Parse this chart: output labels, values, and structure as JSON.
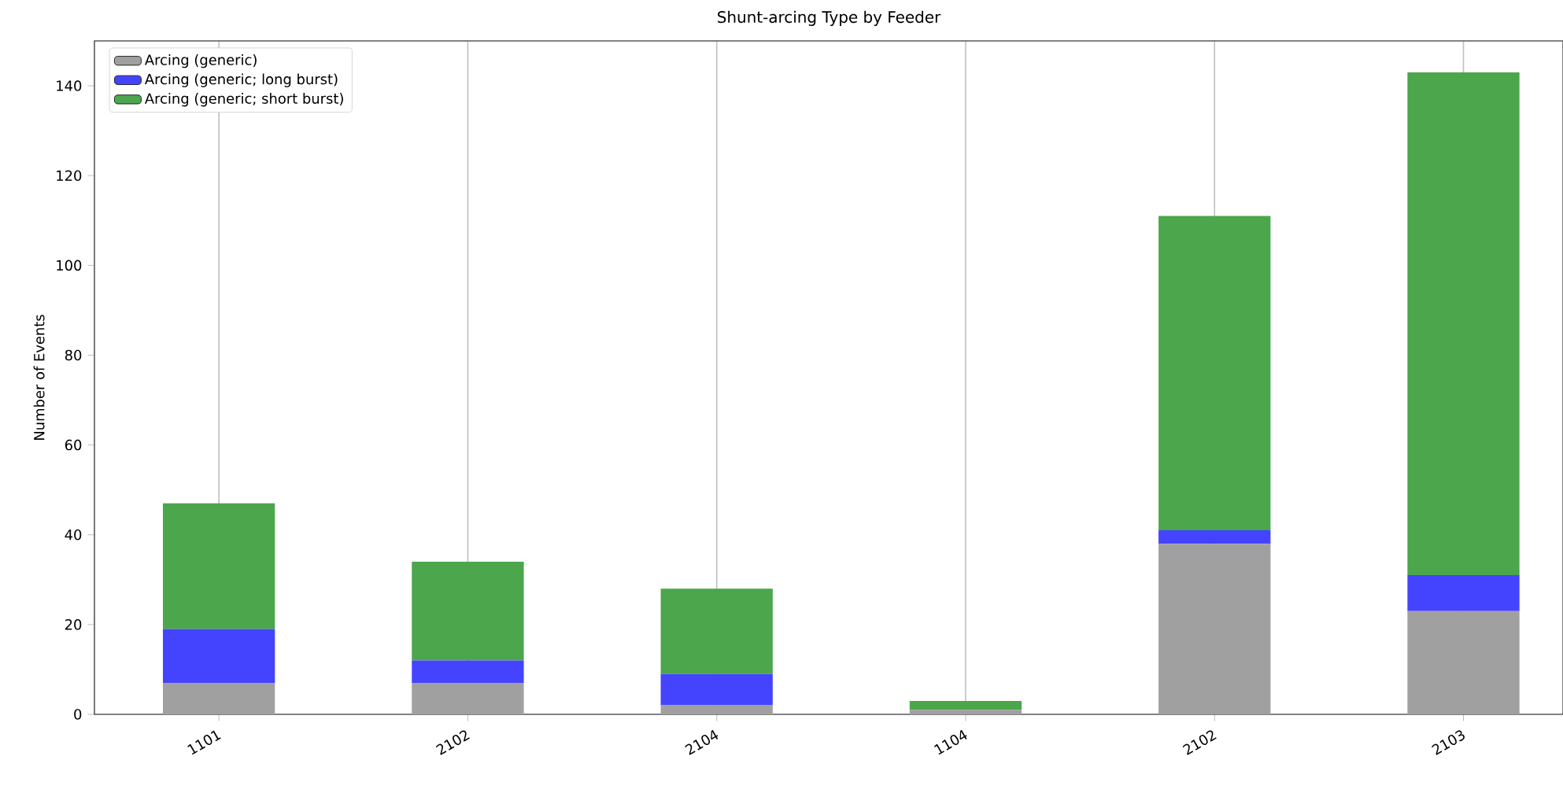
{
  "chart_data": {
    "type": "bar",
    "title": "Shunt-arcing Type by Feeder",
    "ylabel": "Number of Events",
    "categories": [
      "1101",
      "2102",
      "2104",
      "1104",
      "2102",
      "2103"
    ],
    "stacked": true,
    "series": [
      {
        "name": "Arcing (generic)",
        "color": "#a0a0a0",
        "values": [
          7,
          7,
          2,
          1,
          38,
          23
        ]
      },
      {
        "name": "Arcing (generic; long burst)",
        "color": "#4444ff",
        "values": [
          12,
          5,
          7,
          0,
          3,
          8
        ]
      },
      {
        "name": "Arcing (generic; short burst)",
        "color": "#4ca64c",
        "values": [
          28,
          22,
          19,
          2,
          70,
          112
        ]
      }
    ],
    "ylim": [
      0,
      150
    ],
    "yticks": [
      0,
      20,
      40,
      60,
      80,
      100,
      120,
      140
    ],
    "grid": "x",
    "legend": "top left"
  }
}
